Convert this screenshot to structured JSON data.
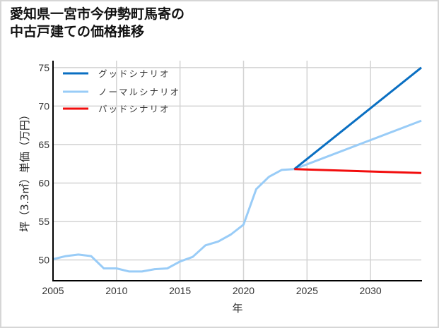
{
  "title": {
    "line1": "愛知県一宮市今伊勢町馬寄の",
    "line2": "中古戸建ての価格推移"
  },
  "axes": {
    "xlabel": "年",
    "ylabel": "坪（3.3㎡）単価（万円）",
    "xticks": [
      "2005",
      "2010",
      "2015",
      "2020",
      "2025",
      "2030"
    ],
    "yticks": [
      "50",
      "55",
      "60",
      "65",
      "70",
      "75"
    ]
  },
  "legend": {
    "items": [
      {
        "label": "グッドシナリオ",
        "color": "#0a6fc2"
      },
      {
        "label": "ノーマルシナリオ",
        "color": "#99ccf7"
      },
      {
        "label": "バッドシナリオ",
        "color": "#f20d0d"
      }
    ]
  },
  "chart_data": {
    "type": "line",
    "title": "愛知県一宮市今伊勢町馬寄の中古戸建ての価格推移",
    "xlabel": "年",
    "ylabel": "坪（3.3㎡）単価（万円）",
    "xlim": [
      2005,
      2034
    ],
    "ylim": [
      47.3,
      75.9
    ],
    "grid": true,
    "legend_position": "upper left",
    "series": [
      {
        "name": "ノーマルシナリオ",
        "color": "#99ccf7",
        "x": [
          2005,
          2006,
          2007,
          2008,
          2009,
          2010,
          2011,
          2012,
          2013,
          2014,
          2015,
          2016,
          2017,
          2018,
          2019,
          2020,
          2021,
          2022,
          2023,
          2024,
          2034
        ],
        "values": [
          50.1,
          50.5,
          50.7,
          50.5,
          48.9,
          48.9,
          48.5,
          48.5,
          48.8,
          48.9,
          49.8,
          50.4,
          51.9,
          52.4,
          53.3,
          54.6,
          59.2,
          60.8,
          61.7,
          61.8,
          68.1
        ]
      },
      {
        "name": "グッドシナリオ",
        "color": "#0a6fc2",
        "x": [
          2024,
          2034
        ],
        "values": [
          61.8,
          75.0
        ]
      },
      {
        "name": "バッドシナリオ",
        "color": "#f20d0d",
        "x": [
          2024,
          2034
        ],
        "values": [
          61.8,
          61.3
        ]
      }
    ]
  }
}
